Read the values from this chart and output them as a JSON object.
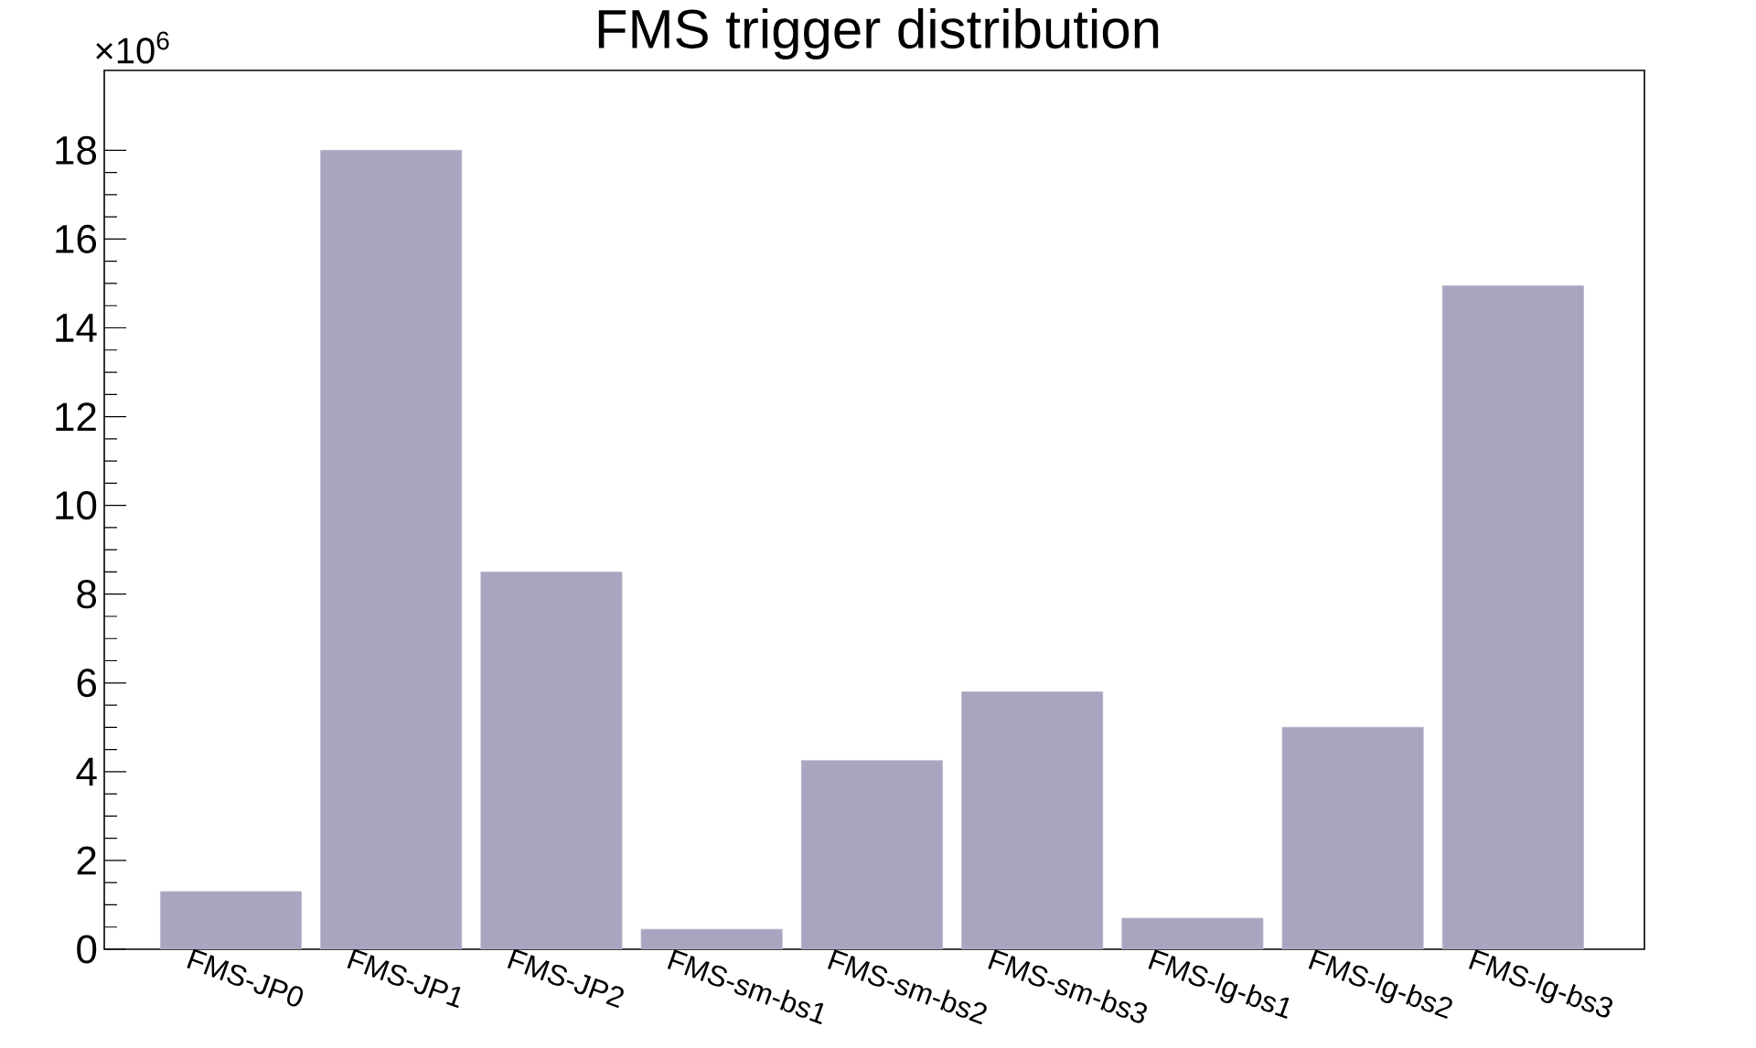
{
  "chart_data": {
    "type": "bar",
    "title": "FMS trigger distribution",
    "annotations": [
      "×10$^{6}$"
    ],
    "categories": [
      "FMS-JP0",
      "FMS-JP1",
      "FMS-JP2",
      "FMS-sm-bs1",
      "FMS-sm-bs2",
      "FMS-sm-bs3",
      "FMS-lg-bs1",
      "FMS-lg-bs2",
      "FMS-lg-bs3"
    ],
    "values": [
      1.3,
      18.0,
      8.5,
      0.45,
      4.25,
      5.8,
      0.7,
      5.0,
      14.95
    ],
    "color": "#a9a4bf",
    "ylim": [
      0,
      19.8
    ],
    "yticks": [
      0,
      2,
      4,
      6,
      8,
      10,
      12,
      14,
      16,
      18
    ]
  }
}
